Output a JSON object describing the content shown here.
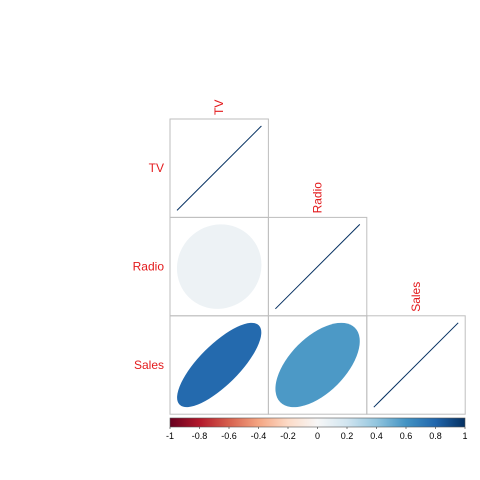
{
  "chart_data": {
    "type": "heatmap",
    "variables": [
      "TV",
      "Radio",
      "Sales"
    ],
    "layout": "lower-triangle",
    "method": "ellipse",
    "correlation_matrix": [
      [
        1.0,
        0.055,
        0.782
      ],
      [
        0.055,
        1.0,
        0.576
      ],
      [
        0.782,
        0.576,
        1.0
      ]
    ],
    "colorbar": {
      "range": [
        -1,
        1
      ],
      "ticks": [
        "-1",
        "-0.8",
        "-0.6",
        "-0.4",
        "-0.2",
        "0",
        "0.2",
        "0.4",
        "0.6",
        "0.8",
        "1"
      ],
      "palette": [
        "#67001f",
        "#b2182b",
        "#d6604d",
        "#f4a582",
        "#fddbc7",
        "#f7f7f7",
        "#d1e5f0",
        "#92c5de",
        "#4393c3",
        "#2166ac",
        "#053061"
      ]
    },
    "label_color": "#e31a1c",
    "grid": true
  }
}
